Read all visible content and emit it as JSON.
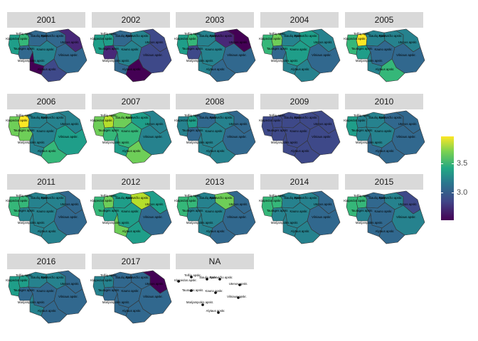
{
  "colors": {
    "strip": "#d9d9d9",
    "border": "#333333",
    "palette": [
      "#440154",
      "#482878",
      "#3e4989",
      "#31688e",
      "#26828e",
      "#1f9e89",
      "#35b779",
      "#6ece58",
      "#b5de2b",
      "#fde725"
    ]
  },
  "legend": {
    "labels": [
      "3.5",
      "3.0"
    ],
    "scale": "viridis"
  },
  "county_labels": [
    "Telšių apskr.",
    "Šiaulių apskr.",
    "Panevėžio apskr.",
    "Klaipėdos apskr.",
    "Utenos apskr.",
    "Tauragės apskr.",
    "Kauno apskr.",
    "Vilniaus apskr.",
    "Marijampolės apskr.",
    "Alytaus apskr."
  ],
  "panels": [
    {
      "title": "2001",
      "colors": [
        6,
        3,
        3,
        5,
        1,
        3,
        4,
        3,
        0,
        2
      ]
    },
    {
      "title": "2002",
      "colors": [
        5,
        3,
        4,
        5,
        2,
        1,
        4,
        2,
        3,
        0
      ]
    },
    {
      "title": "2003",
      "colors": [
        6,
        4,
        1,
        5,
        0,
        2,
        4,
        3,
        4,
        3
      ]
    },
    {
      "title": "2004",
      "colors": [
        7,
        4,
        5,
        6,
        4,
        3,
        5,
        3,
        4,
        4
      ]
    },
    {
      "title": "2005",
      "colors": [
        9,
        4,
        4,
        6,
        4,
        5,
        3,
        3,
        4,
        6
      ]
    },
    {
      "title": "2006",
      "colors": [
        9,
        4,
        4,
        7,
        4,
        7,
        4,
        5,
        4,
        6
      ]
    },
    {
      "title": "2007",
      "colors": [
        8,
        7,
        5,
        7,
        4,
        6,
        6,
        4,
        5,
        7
      ]
    },
    {
      "title": "2008",
      "colors": [
        5,
        3,
        4,
        4,
        3,
        3,
        4,
        3,
        4,
        4
      ]
    },
    {
      "title": "2009",
      "colors": [
        2,
        2,
        2,
        2,
        2,
        2,
        2,
        2,
        2,
        2
      ]
    },
    {
      "title": "2010",
      "colors": [
        4,
        4,
        3,
        5,
        3,
        4,
        4,
        3,
        3,
        3
      ]
    },
    {
      "title": "2011",
      "colors": [
        6,
        4,
        4,
        6,
        3,
        4,
        4,
        3,
        4,
        4
      ]
    },
    {
      "title": "2012",
      "colors": [
        7,
        5,
        8,
        6,
        5,
        5,
        5,
        3,
        7,
        5
      ]
    },
    {
      "title": "2013",
      "colors": [
        6,
        4,
        7,
        6,
        3,
        4,
        4,
        3,
        4,
        3
      ]
    },
    {
      "title": "2014",
      "colors": [
        6,
        4,
        4,
        6,
        3,
        4,
        4,
        3,
        4,
        4
      ]
    },
    {
      "title": "2015",
      "colors": [
        6,
        3,
        4,
        6,
        2,
        4,
        3,
        4,
        3,
        3
      ]
    },
    {
      "title": "2016",
      "colors": [
        5,
        4,
        4,
        5,
        3,
        3,
        3,
        3,
        4,
        3
      ]
    },
    {
      "title": "2017",
      "colors": [
        4,
        3,
        3,
        4,
        0,
        3,
        3,
        3,
        3,
        3
      ]
    },
    {
      "title": "NA",
      "colors": null
    }
  ]
}
